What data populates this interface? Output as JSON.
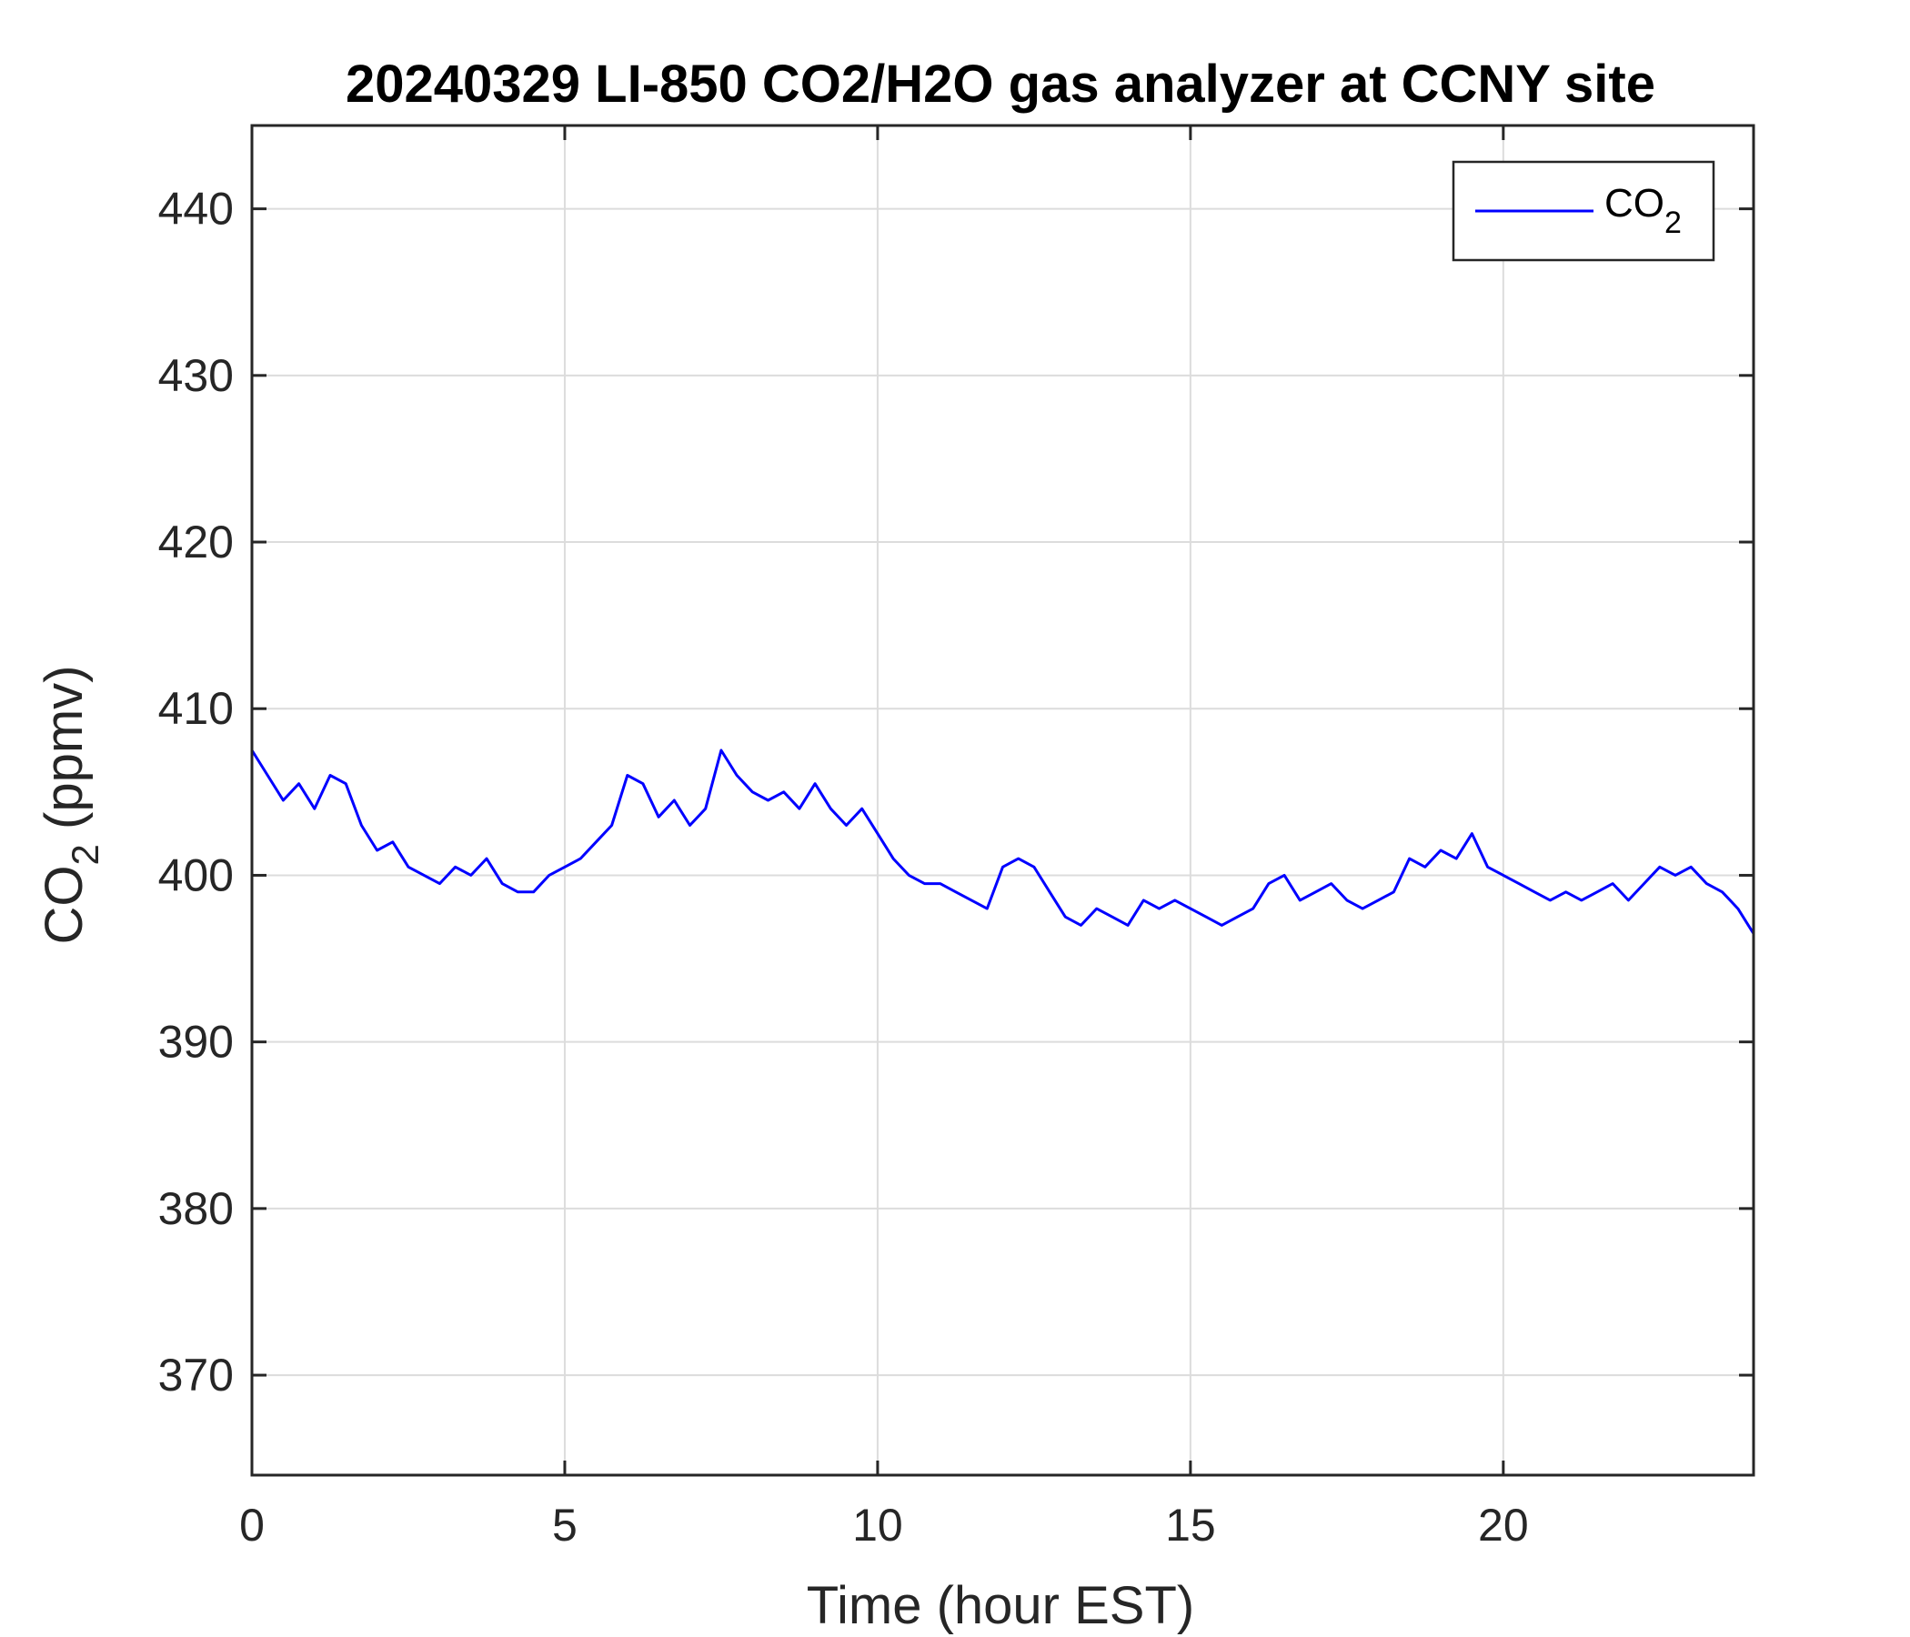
{
  "chart_data": {
    "type": "line",
    "title": "20240329 LI-850 CO2/H2O gas analyzer at CCNY site",
    "xlabel": "Time (hour EST)",
    "ylabel": "CO2 (ppmv)",
    "ylabel_parts": {
      "main": "CO",
      "sub": "2",
      "rest": " (ppmv)"
    },
    "xlim": [
      0,
      24
    ],
    "ylim": [
      364,
      445
    ],
    "xticks": [
      0,
      5,
      10,
      15,
      20
    ],
    "yticks": [
      370,
      380,
      390,
      400,
      410,
      420,
      430,
      440
    ],
    "grid": true,
    "legend_position": "top-right",
    "series": [
      {
        "name": "CO2",
        "legend_label": {
          "main": "CO",
          "sub": "2"
        },
        "color": "#0000ff",
        "x": [
          0,
          0.25,
          0.5,
          0.75,
          1.0,
          1.25,
          1.5,
          1.75,
          2.0,
          2.25,
          2.5,
          2.75,
          3.0,
          3.25,
          3.5,
          3.75,
          4.0,
          4.25,
          4.5,
          4.75,
          5.0,
          5.25,
          5.5,
          5.75,
          6.0,
          6.25,
          6.5,
          6.75,
          7.0,
          7.25,
          7.5,
          7.75,
          8.0,
          8.25,
          8.5,
          8.75,
          9.0,
          9.25,
          9.5,
          9.75,
          10.0,
          10.25,
          10.5,
          10.75,
          11.0,
          11.25,
          11.5,
          11.75,
          12.0,
          12.25,
          12.5,
          12.75,
          13.0,
          13.25,
          13.5,
          13.75,
          14.0,
          14.25,
          14.5,
          14.75,
          15.0,
          15.25,
          15.5,
          15.75,
          16.0,
          16.25,
          16.5,
          16.75,
          17.0,
          17.25,
          17.5,
          17.75,
          18.0,
          18.25,
          18.5,
          18.75,
          19.0,
          19.25,
          19.5,
          19.75,
          20.0,
          20.25,
          20.5,
          20.75,
          21.0,
          21.25,
          21.5,
          21.75,
          22.0,
          22.25,
          22.5,
          22.75,
          23.0,
          23.25,
          23.5,
          23.75,
          24.0
        ],
        "y": [
          407.5,
          406.0,
          404.5,
          405.5,
          404.0,
          406.0,
          405.5,
          403.0,
          401.5,
          402.0,
          400.5,
          400.0,
          399.5,
          400.5,
          400.0,
          401.0,
          399.5,
          399.0,
          399.0,
          400.0,
          400.5,
          401.0,
          402.0,
          403.0,
          406.0,
          405.5,
          403.5,
          404.5,
          403.0,
          404.0,
          407.5,
          406.0,
          405.0,
          404.5,
          405.0,
          404.0,
          405.5,
          404.0,
          403.0,
          404.0,
          402.5,
          401.0,
          400.0,
          399.5,
          399.5,
          399.0,
          398.5,
          398.0,
          400.5,
          401.0,
          400.5,
          399.0,
          397.5,
          397.0,
          398.0,
          397.5,
          397.0,
          398.5,
          398.0,
          398.5,
          398.0,
          397.5,
          397.0,
          397.5,
          398.0,
          399.5,
          400.0,
          398.5,
          399.0,
          399.5,
          398.5,
          398.0,
          398.5,
          399.0,
          401.0,
          400.5,
          401.5,
          401.0,
          402.5,
          400.5,
          400.0,
          399.5,
          399.0,
          398.5,
          399.0,
          398.5,
          399.0,
          399.5,
          398.5,
          399.5,
          400.5,
          400.0,
          400.5,
          399.5,
          399.0,
          398.0,
          396.5
        ]
      }
    ]
  }
}
